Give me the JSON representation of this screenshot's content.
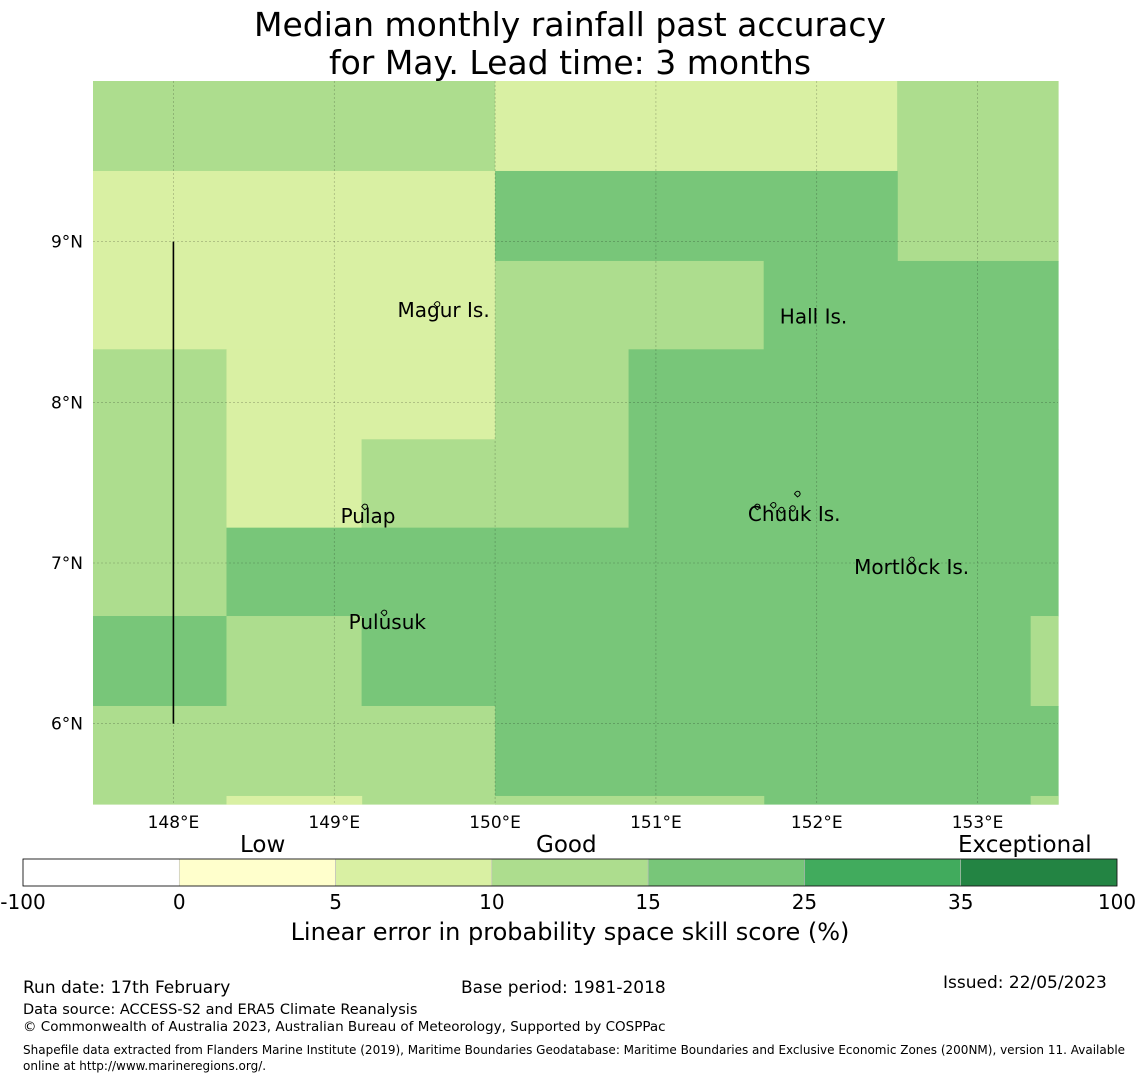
{
  "title": {
    "line1": "Median monthly rainfall past accuracy",
    "line2": "for May. Lead time: 3 months"
  },
  "map": {
    "lon_range": [
      147.5,
      153.5
    ],
    "lat_range": [
      5.5,
      10.0
    ],
    "x_ticks": [
      {
        "lon": 148,
        "label": "148°E"
      },
      {
        "lon": 149,
        "label": "149°E"
      },
      {
        "lon": 150,
        "label": "150°E"
      },
      {
        "lon": 151,
        "label": "151°E"
      },
      {
        "lon": 152,
        "label": "152°E"
      },
      {
        "lon": 153,
        "label": "153°E"
      }
    ],
    "y_ticks": [
      {
        "lat": 9,
        "label": "9°N"
      },
      {
        "lat": 8,
        "label": "8°N"
      },
      {
        "lat": 7,
        "label": "7°N"
      },
      {
        "lat": 6,
        "label": "6°N"
      }
    ],
    "cells": [
      {
        "lon": [
          147.5,
          150.0
        ],
        "lat": [
          9.44,
          10.0
        ],
        "level": "10-15"
      },
      {
        "lon": [
          150.0,
          152.5
        ],
        "lat": [
          9.44,
          10.0
        ],
        "level": "5-10"
      },
      {
        "lon": [
          152.5,
          153.5
        ],
        "lat": [
          8.88,
          10.0
        ],
        "level": "10-15"
      },
      {
        "lon": [
          147.5,
          150.0
        ],
        "lat": [
          8.33,
          9.44
        ],
        "level": "5-10"
      },
      {
        "lon": [
          150.0,
          152.5
        ],
        "lat": [
          8.88,
          9.44
        ],
        "level": "15-25"
      },
      {
        "lon": [
          150.0,
          151.67
        ],
        "lat": [
          8.33,
          8.88
        ],
        "level": "10-15"
      },
      {
        "lon": [
          151.67,
          153.5
        ],
        "lat": [
          8.33,
          8.88
        ],
        "level": "15-25"
      },
      {
        "lon": [
          147.5,
          148.33
        ],
        "lat": [
          6.67,
          8.33
        ],
        "level": "10-15"
      },
      {
        "lon": [
          148.33,
          150.0
        ],
        "lat": [
          7.22,
          8.33
        ],
        "level": "5-10"
      },
      {
        "lon": [
          149.17,
          150.83
        ],
        "lat": [
          7.22,
          7.77
        ],
        "level": "10-15"
      },
      {
        "lon": [
          150.0,
          150.83
        ],
        "lat": [
          7.77,
          8.33
        ],
        "level": "10-15"
      },
      {
        "lon": [
          150.83,
          153.5
        ],
        "lat": [
          6.67,
          8.33
        ],
        "level": "15-25"
      },
      {
        "lon": [
          148.33,
          150.83
        ],
        "lat": [
          6.67,
          7.22
        ],
        "level": "15-25"
      },
      {
        "lon": [
          147.5,
          148.33
        ],
        "lat": [
          6.11,
          6.67
        ],
        "level": "15-25"
      },
      {
        "lon": [
          148.33,
          149.17
        ],
        "lat": [
          6.11,
          6.67
        ],
        "level": "10-15"
      },
      {
        "lon": [
          149.17,
          153.33
        ],
        "lat": [
          6.11,
          6.67
        ],
        "level": "15-25"
      },
      {
        "lon": [
          153.33,
          153.5
        ],
        "lat": [
          6.11,
          6.67
        ],
        "level": "10-15"
      },
      {
        "lon": [
          147.5,
          150.0
        ],
        "lat": [
          5.5,
          6.11
        ],
        "level": "10-15"
      },
      {
        "lon": [
          150.0,
          153.33
        ],
        "lat": [
          5.5,
          6.11
        ],
        "level": "15-25"
      },
      {
        "lon": [
          153.33,
          153.5
        ],
        "lat": [
          5.5,
          6.11
        ],
        "level": "15-25"
      },
      {
        "lon": [
          148.33,
          149.17
        ],
        "lat": [
          5.5,
          5.55
        ],
        "level": "5-10"
      },
      {
        "lon": [
          150.0,
          151.67
        ],
        "lat": [
          5.5,
          5.55
        ],
        "level": "10-15"
      },
      {
        "lon": [
          153.33,
          153.5
        ],
        "lat": [
          5.5,
          5.55
        ],
        "level": "10-15"
      }
    ],
    "boundary_line": {
      "lon": 148.0,
      "lat": [
        6.0,
        9.0
      ]
    },
    "places": [
      {
        "name": "Magur Is.",
        "lon": 149.68,
        "lat": 8.53
      },
      {
        "name": "Hall Is.",
        "lon": 151.98,
        "lat": 8.49
      },
      {
        "name": "Pulap",
        "lon": 149.21,
        "lat": 7.25
      },
      {
        "name": "Chuuk Is.",
        "lon": 151.86,
        "lat": 7.26
      },
      {
        "name": "Mortlock Is.",
        "lon": 152.59,
        "lat": 6.93
      },
      {
        "name": "Pulusuk",
        "lon": 149.33,
        "lat": 6.59
      }
    ],
    "islands": [
      {
        "lon": 149.64,
        "lat": 8.61
      },
      {
        "lon": 149.19,
        "lat": 7.35
      },
      {
        "lon": 149.31,
        "lat": 6.69
      },
      {
        "lon": 151.63,
        "lat": 7.35
      },
      {
        "lon": 151.73,
        "lat": 7.36
      },
      {
        "lon": 151.85,
        "lat": 7.34
      },
      {
        "lon": 151.88,
        "lat": 7.43
      },
      {
        "lon": 151.78,
        "lat": 7.33
      },
      {
        "lon": 152.59,
        "lat": 7.02
      }
    ]
  },
  "legend": {
    "colors": {
      "-100-0": "#ffffff",
      "0-5": "#ffffcc",
      "5-10": "#d9f0a3",
      "10-15": "#addd8e",
      "15-25": "#78c679",
      "25-35": "#41ab5d",
      "35-100": "#238443"
    },
    "bins": [
      "-100-0",
      "0-5",
      "5-10",
      "10-15",
      "15-25",
      "25-35",
      "35-100"
    ],
    "tick_labels": [
      "-100",
      "0",
      "5",
      "10",
      "15",
      "25",
      "35",
      "100"
    ],
    "tiers": {
      "low": "Low",
      "good": "Good",
      "exceptional": "Exceptional"
    },
    "label": "Linear error in probability space skill score (%)"
  },
  "footer": {
    "run_date": "Run date: 17th February",
    "base_period": "Base period: 1981-2018",
    "issued": "Issued: 22/05/2023",
    "data_source": "Data source: ACCESS-S2 and ERA5 Climate Reanalysis",
    "copyright": "© Commonwealth of Australia 2023, Australian Bureau of Meteorology, Supported by COSPPac",
    "shapefile": "Shapefile data extracted from Flanders Marine Institute (2019), Maritime Boundaries Geodatabase: Maritime Boundaries and Exclusive Economic Zones (200NM), version 11. Available online at http://www.marineregions.org/."
  }
}
